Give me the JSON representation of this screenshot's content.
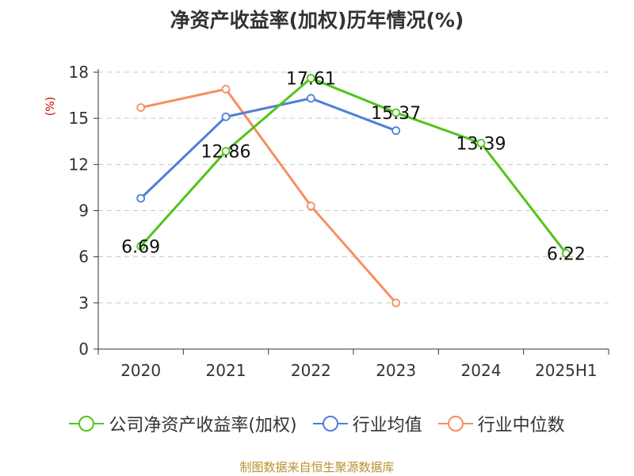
{
  "title": "净资产收益率(加权)历年情况(%)",
  "source": "制图数据来自恒生聚源数据库",
  "chart_data": {
    "type": "line",
    "categories": [
      "2020",
      "2021",
      "2022",
      "2023",
      "2024",
      "2025H1"
    ],
    "ylabel": "(%)",
    "ylim": [
      0,
      18
    ],
    "yticks": [
      0,
      3,
      6,
      9,
      12,
      15,
      18
    ],
    "grid": true,
    "legend_position": "bottom",
    "series": [
      {
        "name": "公司净资产收益率(加权)",
        "color": "#52c41a",
        "values": [
          6.69,
          12.86,
          17.61,
          15.37,
          13.39,
          6.22
        ],
        "labels": true
      },
      {
        "name": "行业均值",
        "color": "#4f7fd6",
        "values": [
          9.8,
          15.1,
          16.3,
          14.2,
          null,
          null
        ],
        "labels": false
      },
      {
        "name": "行业中位数",
        "color": "#f68e5f",
        "values": [
          15.7,
          16.9,
          9.3,
          3.0,
          null,
          null
        ],
        "labels": false
      }
    ]
  }
}
